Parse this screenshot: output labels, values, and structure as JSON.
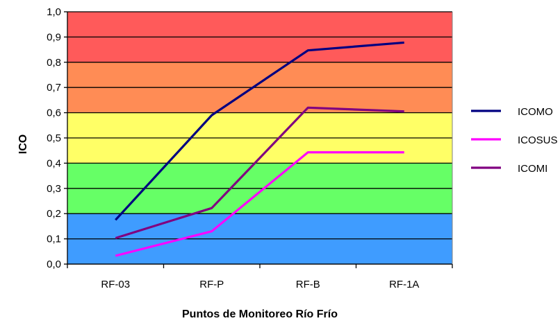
{
  "chart_data": {
    "type": "line",
    "categories": [
      "RF-03",
      "RF-P",
      "RF-B",
      "RF-1A"
    ],
    "xlabel": "Puntos de Monitoreo Río Frío",
    "ylabel": "ICO",
    "ylim": [
      0,
      1.0
    ],
    "yticks": [
      0.0,
      0.1,
      0.2,
      0.3,
      0.4,
      0.5,
      0.6,
      0.7,
      0.8,
      0.9,
      1.0
    ],
    "ytick_labels": [
      "0,0",
      "0,1",
      "0,2",
      "0,3",
      "0,4",
      "0,5",
      "0,6",
      "0,7",
      "0,8",
      "0,9",
      "1,0"
    ],
    "grid": true,
    "legend_position": "right",
    "background_bands": [
      {
        "from": 0.0,
        "to": 0.2,
        "color": "#3f9cff"
      },
      {
        "from": 0.2,
        "to": 0.4,
        "color": "#66ff66"
      },
      {
        "from": 0.4,
        "to": 0.6,
        "color": "#ffff66"
      },
      {
        "from": 0.6,
        "to": 0.8,
        "color": "#ff8c55"
      },
      {
        "from": 0.8,
        "to": 1.0,
        "color": "#ff5a5a"
      }
    ],
    "series": [
      {
        "name": "ICOMO",
        "color": "#000080",
        "values": [
          0.175,
          0.59,
          0.847,
          0.878
        ]
      },
      {
        "name": "ICOSUS",
        "color": "#ff00ff",
        "values": [
          0.033,
          0.13,
          0.443,
          0.443
        ]
      },
      {
        "name": "ICOMI",
        "color": "#800080",
        "values": [
          0.103,
          0.222,
          0.62,
          0.605
        ]
      }
    ]
  }
}
